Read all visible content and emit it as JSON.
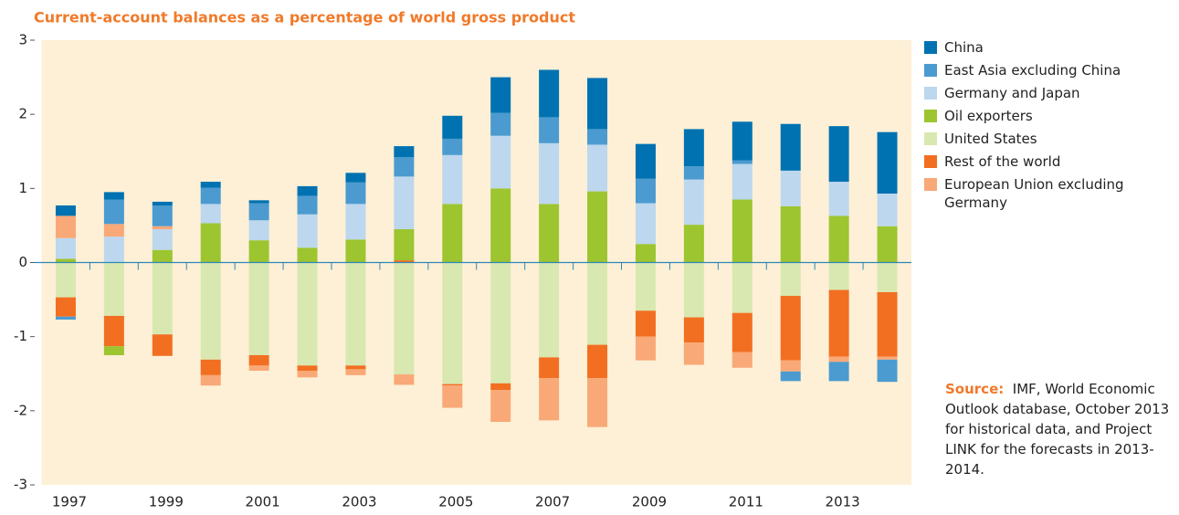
{
  "chart_data": {
    "type": "stacked-bar",
    "title": "Current-account balances as a percentage of world gross product",
    "categories": [
      "1997",
      null,
      "1999",
      null,
      "2001",
      null,
      "2003",
      null,
      "2005",
      null,
      "2007",
      null,
      "2009",
      null,
      "2011",
      null,
      "2013",
      null
    ],
    "series": [
      {
        "name": "China",
        "color": "#0072b1",
        "values": [
          0.14,
          0.1,
          0.05,
          0.08,
          0.04,
          0.13,
          0.13,
          0.15,
          0.31,
          0.48,
          0.64,
          0.69,
          0.47,
          0.5,
          0.52,
          0.63,
          0.75,
          0.83
        ]
      },
      {
        "name": "East Asia excluding China",
        "color": "#4b9bd0",
        "values": [
          -0.04,
          0.33,
          0.28,
          0.22,
          0.23,
          0.25,
          0.29,
          0.26,
          0.22,
          0.31,
          0.35,
          0.21,
          0.33,
          0.18,
          0.05,
          -0.13,
          -0.26,
          -0.3
        ]
      },
      {
        "name": "Germany and Japan",
        "color": "#bdd7ee",
        "values": [
          0.28,
          0.35,
          0.28,
          0.26,
          0.27,
          0.45,
          0.48,
          0.71,
          0.66,
          0.71,
          0.82,
          0.63,
          0.55,
          0.61,
          0.48,
          0.48,
          0.46,
          0.44
        ]
      },
      {
        "name": "Oil exporters",
        "color": "#9cc530",
        "values": [
          0.05,
          -0.12,
          0.17,
          0.53,
          0.3,
          0.2,
          0.31,
          0.42,
          0.79,
          1.0,
          0.79,
          0.96,
          0.25,
          0.51,
          0.85,
          0.76,
          0.63,
          0.49
        ]
      },
      {
        "name": "United States",
        "color": "#d9e8b0",
        "values": [
          -0.47,
          -0.72,
          -0.97,
          -1.31,
          -1.25,
          -1.39,
          -1.39,
          -1.51,
          -1.64,
          -1.63,
          -1.28,
          -1.11,
          -0.65,
          -0.74,
          -0.68,
          -0.45,
          -0.37,
          -0.4
        ]
      },
      {
        "name": "Rest of the world",
        "color": "#f26f21",
        "values": [
          -0.26,
          -0.41,
          -0.29,
          -0.21,
          -0.14,
          -0.07,
          -0.05,
          0.03,
          -0.02,
          -0.09,
          -0.28,
          -0.45,
          -0.35,
          -0.34,
          -0.53,
          -0.87,
          -0.9,
          -0.87
        ]
      },
      {
        "name": "European Union excluding Germany",
        "color": "#f9a877",
        "values": [
          0.3,
          0.17,
          0.04,
          -0.14,
          -0.07,
          -0.09,
          -0.08,
          -0.14,
          -0.3,
          -0.43,
          -0.57,
          -0.66,
          -0.32,
          -0.3,
          -0.21,
          -0.15,
          -0.07,
          -0.04
        ]
      }
    ],
    "ylim": [
      -3,
      3
    ],
    "yticks": [
      -3,
      -2,
      -1,
      0,
      1,
      2,
      3
    ],
    "source_label": "Source:",
    "source_text": "IMF, World Economic Outlook database, October 2013 for historical data, and Project LINK for the forecasts in 2013-2014."
  }
}
